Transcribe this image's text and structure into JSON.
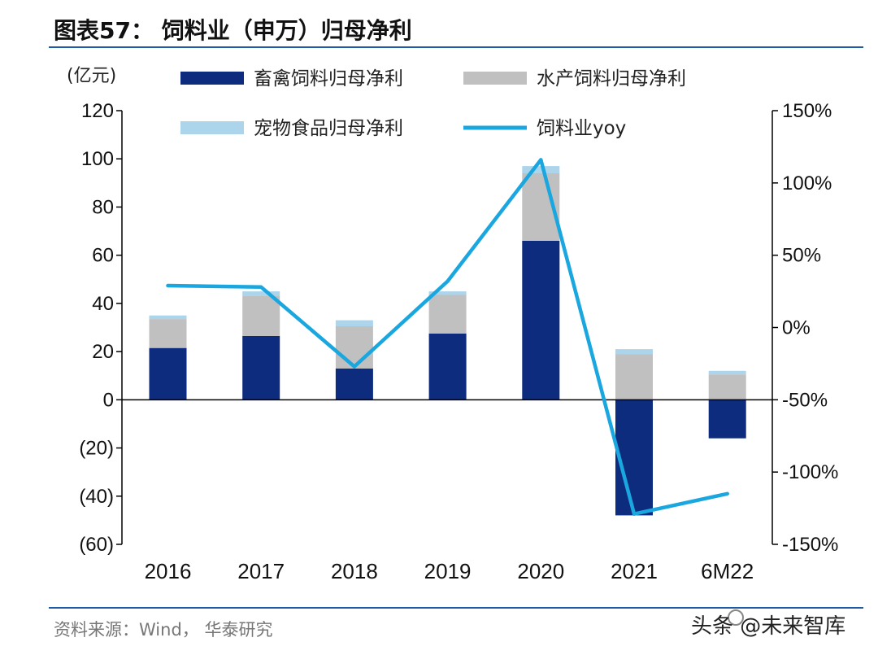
{
  "header": {
    "title": "图表57： 饲料业（申万）归母净利",
    "unit": "(亿元)"
  },
  "source": "资料来源：Wind， 华泰研究",
  "watermark": "头条 @未来智库",
  "colors": {
    "livestock": "#0d2c7e",
    "aquatic": "#c0c0c0",
    "pet": "#acd5ec",
    "yoy": "#1aa7df",
    "rule": "#1f5aa6",
    "axis": "#000000"
  },
  "chart_data": {
    "type": "bar",
    "stacked": true,
    "categories": [
      "2016",
      "2017",
      "2018",
      "2019",
      "2020",
      "2021",
      "6M22"
    ],
    "series": [
      {
        "name": "畜禽饲料归母净利",
        "values": [
          21.5,
          26.5,
          13,
          27.5,
          66,
          -48,
          -16
        ]
      },
      {
        "name": "水产饲料归母净利",
        "values": [
          12,
          16.5,
          17.5,
          16,
          28,
          19,
          10.5
        ]
      },
      {
        "name": "宠物食品归母净利",
        "values": [
          1.5,
          2,
          2.5,
          1.5,
          3,
          2,
          1.5
        ]
      }
    ],
    "line_series": {
      "name": "饲料业yoy",
      "axis": "right",
      "values": [
        29,
        28,
        -27,
        32,
        116,
        -129,
        -115
      ]
    },
    "ylim": [
      -60,
      120
    ],
    "yticks": [
      120,
      100,
      80,
      60,
      40,
      20,
      0,
      -20,
      -40,
      -60
    ],
    "ytick_labels": [
      "120",
      "100",
      "80",
      "60",
      "40",
      "20",
      "0",
      "(20)",
      "(40)",
      "(60)"
    ],
    "y2lim": [
      -150,
      150
    ],
    "y2ticks": [
      150,
      100,
      50,
      0,
      -50,
      -100,
      -150
    ],
    "y2tick_labels": [
      "150%",
      "100%",
      "50%",
      "0%",
      "-50%",
      "-100%",
      "-150%"
    ],
    "ylabel": "(亿元)",
    "legend": [
      "畜禽饲料归母净利",
      "水产饲料归母净利",
      "宠物食品归母净利",
      "饲料业yoy"
    ],
    "legend_position": "top"
  }
}
